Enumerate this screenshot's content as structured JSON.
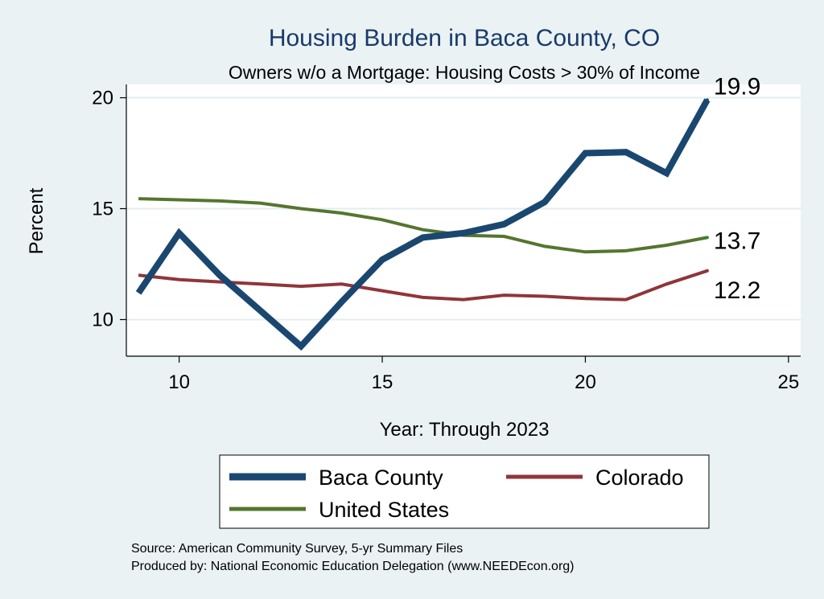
{
  "chart_data": {
    "type": "line",
    "title": "Housing Burden in Baca County, CO",
    "subtitle": "Owners w/o a Mortgage: Housing Costs > 30% of Income",
    "xlabel": "Year: Through 2023",
    "ylabel": "Percent",
    "xlim": [
      8.7,
      25.3
    ],
    "ylim": [
      8.35,
      20.6
    ],
    "xticks": [
      10,
      15,
      20,
      25
    ],
    "yticks": [
      10,
      15,
      20
    ],
    "grid": true,
    "legend_position": "bottom",
    "series": [
      {
        "name": "Baca County",
        "color": "#1a476f",
        "x": [
          9,
          10,
          11,
          12,
          13,
          14,
          15,
          16,
          17,
          18,
          19,
          20,
          21,
          22,
          23
        ],
        "y": [
          11.2,
          13.9,
          12.0,
          10.4,
          8.8,
          10.8,
          12.7,
          13.7,
          13.9,
          14.3,
          15.3,
          17.5,
          17.55,
          16.6,
          19.9
        ],
        "end_label": "19.9"
      },
      {
        "name": "Colorado",
        "color": "#90353b",
        "x": [
          9,
          10,
          11,
          12,
          13,
          14,
          15,
          16,
          17,
          18,
          19,
          20,
          21,
          22,
          23
        ],
        "y": [
          12.0,
          11.8,
          11.7,
          11.6,
          11.5,
          11.6,
          11.3,
          11.0,
          10.9,
          11.1,
          11.05,
          10.95,
          10.9,
          11.6,
          12.2
        ],
        "end_label": "12.2"
      },
      {
        "name": "United States",
        "color": "#55752f",
        "x": [
          9,
          10,
          11,
          12,
          13,
          14,
          15,
          16,
          17,
          18,
          19,
          20,
          21,
          22,
          23
        ],
        "y": [
          15.45,
          15.4,
          15.35,
          15.25,
          15.0,
          14.8,
          14.5,
          14.05,
          13.8,
          13.75,
          13.3,
          13.05,
          13.1,
          13.35,
          13.7
        ],
        "end_label": "13.7"
      }
    ],
    "notes": [
      "Source: American Community Survey, 5-yr Summary Files",
      "Produced by: National Economic Education Delegation (www.NEEDEcon.org)"
    ]
  }
}
